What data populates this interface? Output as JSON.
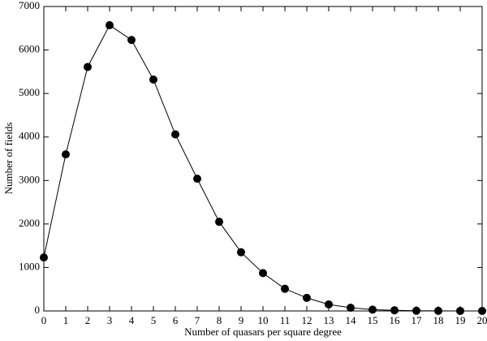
{
  "chart_data": {
    "type": "line",
    "x_label": "Number of quasars per square degree",
    "y_label": "Number of fields",
    "x": [
      0,
      1,
      2,
      3,
      4,
      5,
      6,
      7,
      8,
      9,
      10,
      11,
      12,
      13,
      14,
      15,
      16,
      17,
      18,
      19,
      20
    ],
    "values": [
      1230,
      3600,
      5610,
      6570,
      6230,
      5320,
      4060,
      3040,
      2050,
      1350,
      870,
      510,
      300,
      150,
      75,
      30,
      15,
      5,
      2,
      1,
      0
    ],
    "color": "#000000",
    "xlim": [
      0,
      20
    ],
    "xticks": [
      0,
      1,
      2,
      3,
      4,
      5,
      6,
      7,
      8,
      9,
      10,
      11,
      12,
      13,
      14,
      15,
      16,
      17,
      18,
      19,
      20
    ],
    "ylim": [
      0,
      7000
    ],
    "yticks": [
      0,
      1000,
      2000,
      3000,
      4000,
      5000,
      6000,
      7000
    ]
  }
}
